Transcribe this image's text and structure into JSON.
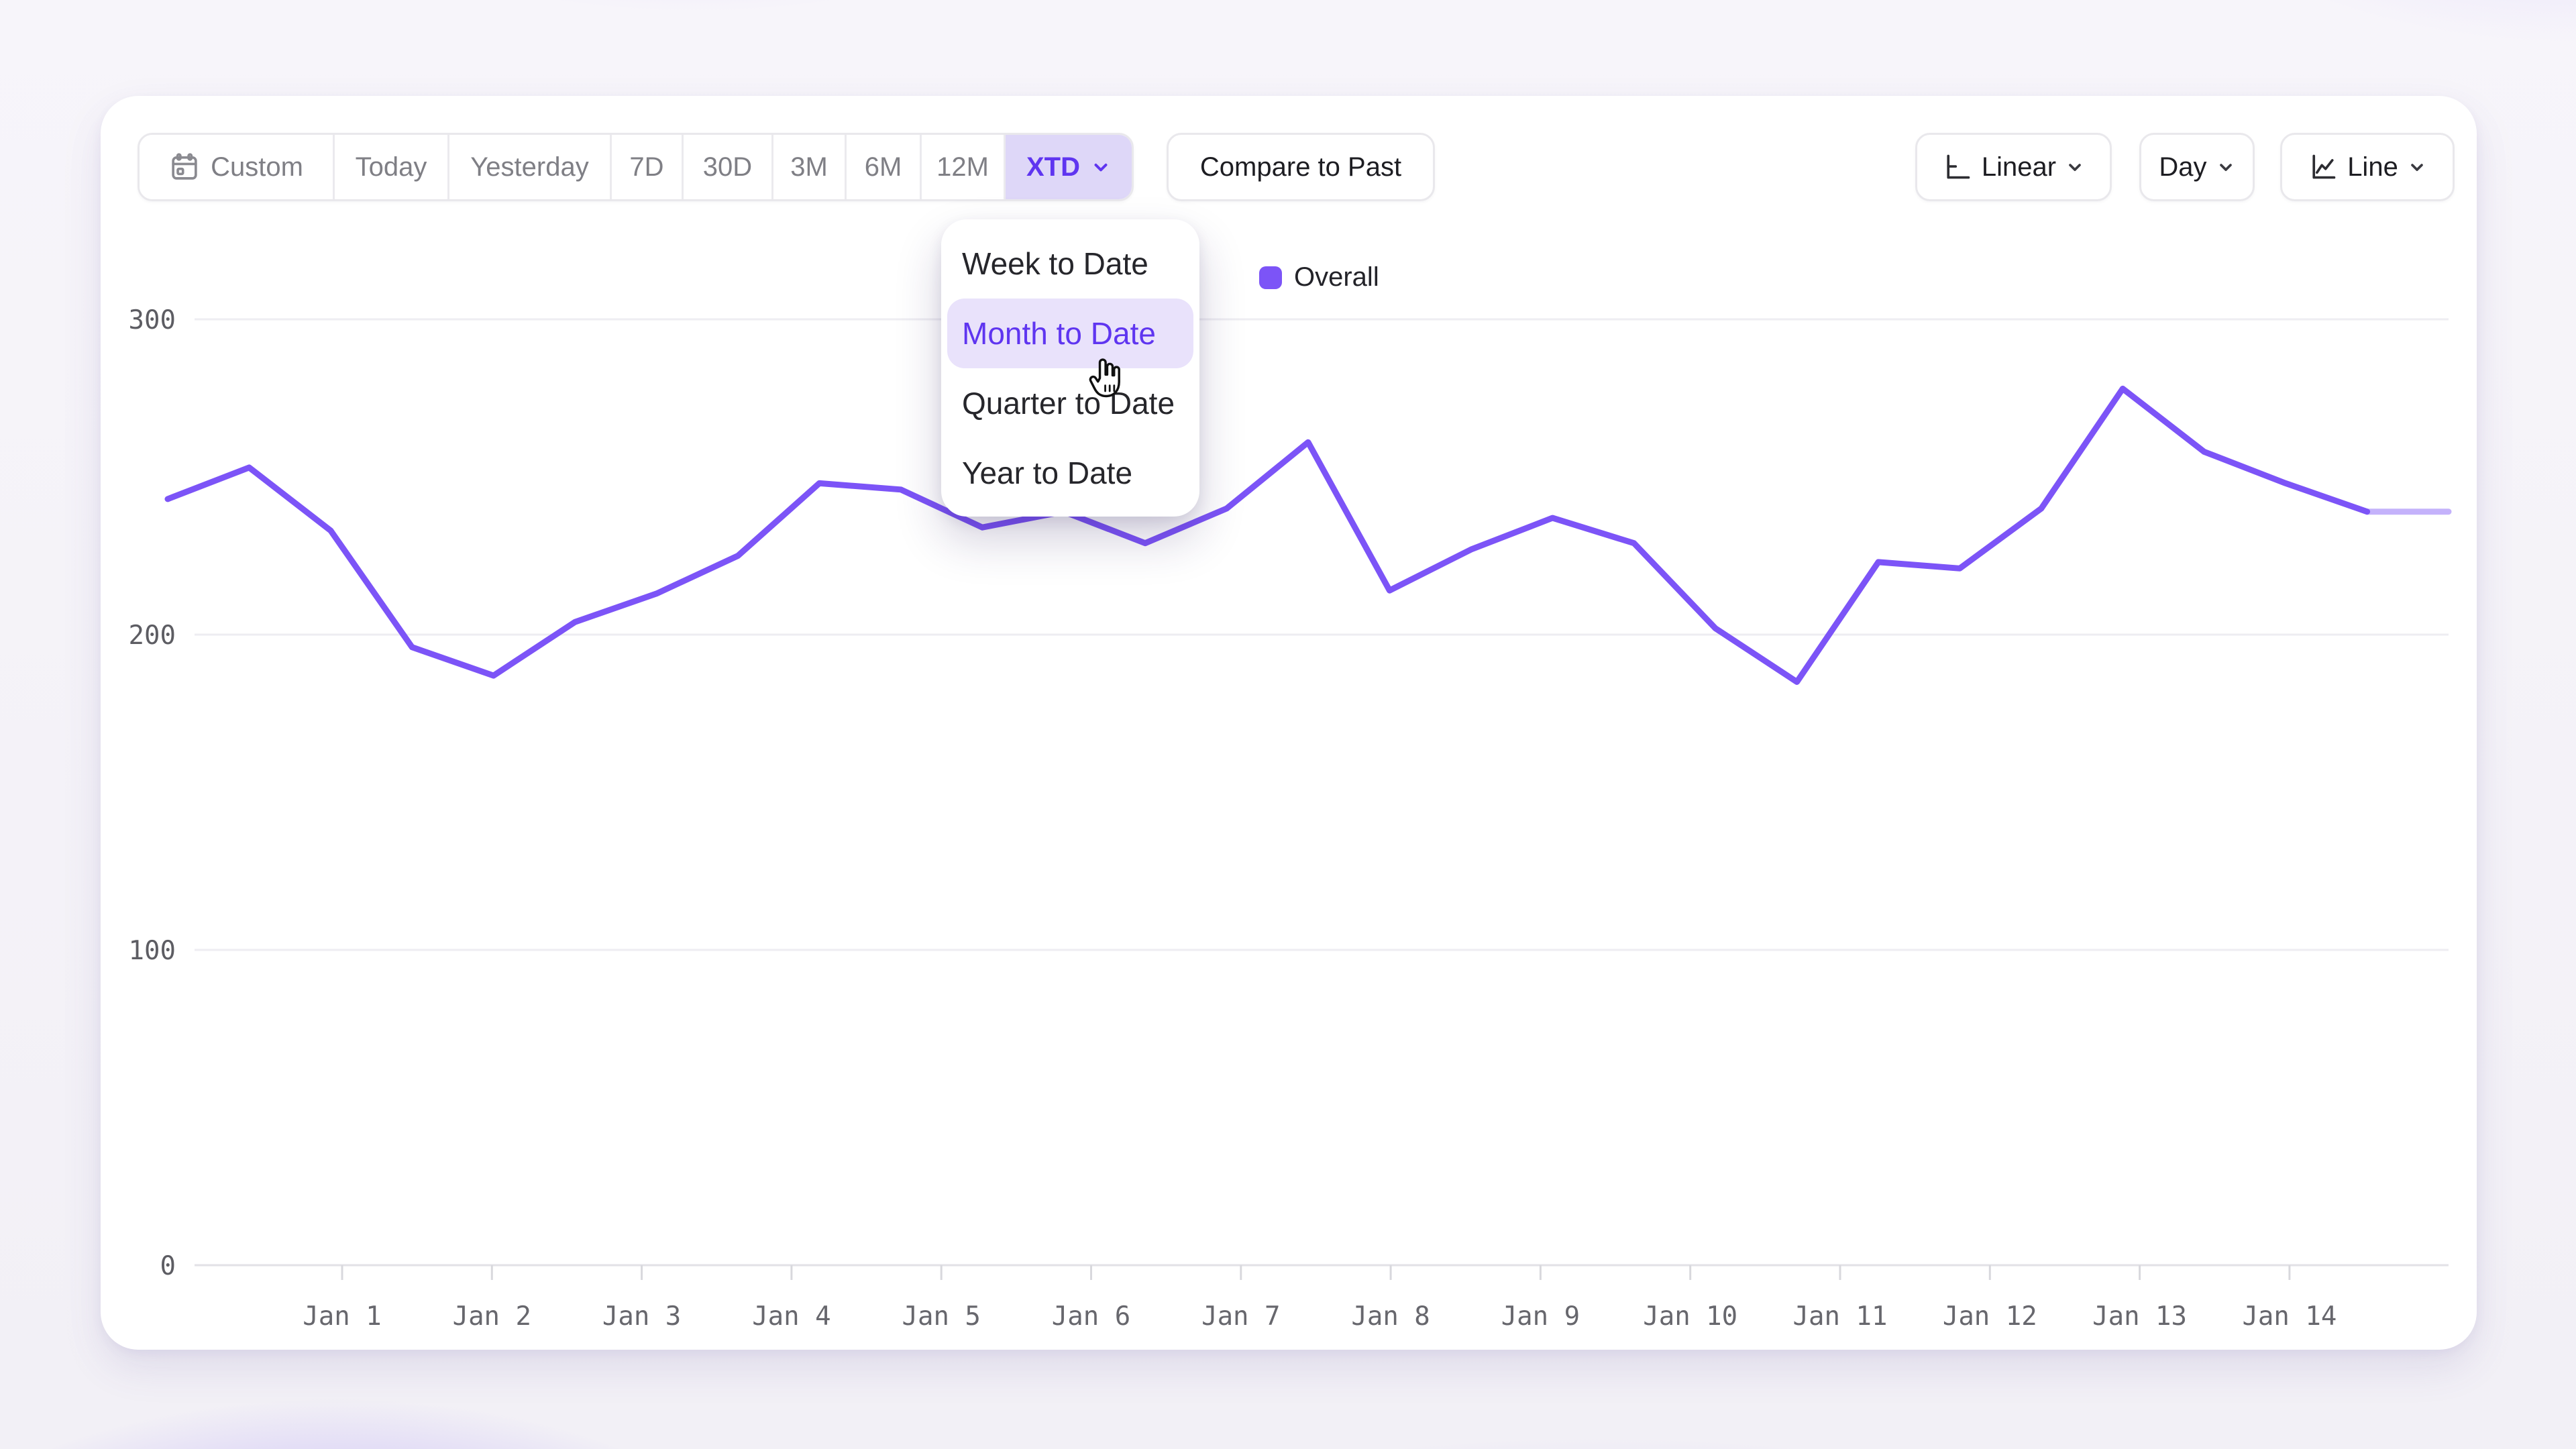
{
  "colors": {
    "accent": "#5f35f0",
    "accent_soft_bg": "#ded7f8",
    "menu_highlight_bg": "#e9e2fb",
    "line": "#7c54f7",
    "grid": "#eeedf2",
    "axis": "#e2e1e6"
  },
  "toolbar": {
    "presets": [
      {
        "label": "Custom",
        "icon": "calendar-icon",
        "selected": false
      },
      {
        "label": "Today",
        "selected": false
      },
      {
        "label": "Yesterday",
        "selected": false
      },
      {
        "label": "7D",
        "selected": false
      },
      {
        "label": "30D",
        "selected": false
      },
      {
        "label": "3M",
        "selected": false
      },
      {
        "label": "6M",
        "selected": false
      },
      {
        "label": "12M",
        "selected": false
      },
      {
        "label": "XTD",
        "selected": true,
        "has_chevron": true
      }
    ],
    "compare_label": "Compare to Past",
    "scale_button": {
      "label": "Linear",
      "icon": "axis-icon",
      "has_chevron": true
    },
    "granularity_button": {
      "label": "Day",
      "has_chevron": true
    },
    "chart_type_button": {
      "label": "Line",
      "icon": "line-chart-icon",
      "has_chevron": true
    }
  },
  "dropdown": {
    "items": [
      {
        "label": "Week to Date",
        "highlighted": false
      },
      {
        "label": "Month to Date",
        "highlighted": true
      },
      {
        "label": "Quarter to Date",
        "highlighted": false
      },
      {
        "label": "Year to Date",
        "highlighted": false
      }
    ]
  },
  "cursor": {
    "type": "hand-pointer",
    "over": "Month to Date"
  },
  "legend": {
    "series": [
      {
        "label": "Overall",
        "color": "#7c54f7"
      }
    ]
  },
  "chart_data": {
    "type": "line",
    "title": "",
    "xlabel": "",
    "ylabel": "",
    "y_ticks": [
      0,
      100,
      200,
      300
    ],
    "ylim": [
      0,
      320
    ],
    "grid": "horizontal",
    "legend_position": "top-center",
    "x_tick_labels": [
      "Jan 1",
      "Jan 2",
      "Jan 3",
      "Jan 4",
      "Jan 5",
      "Jan 6",
      "Jan 7",
      "Jan 8",
      "Jan 9",
      "Jan 10",
      "Jan 11",
      "Jan 12",
      "Jan 13",
      "Jan 14"
    ],
    "series": [
      {
        "name": "Overall",
        "color": "#7c54f7",
        "values": [
          243,
          253,
          233,
          196,
          187,
          204,
          213,
          225,
          248,
          246,
          234,
          239,
          229,
          240,
          261,
          214,
          227,
          237,
          229,
          202,
          185,
          223,
          221,
          240,
          278,
          258,
          248,
          239,
          239
        ],
        "faded_tail_segments": 1
      }
    ]
  }
}
